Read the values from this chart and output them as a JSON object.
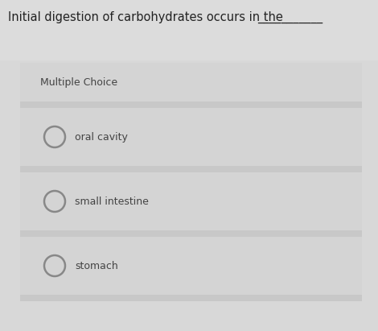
{
  "title_parts": [
    "Initial digestion of carbohydrates occurs in the "
  ],
  "underline_text": "___________",
  "label": "Multiple Choice",
  "options": [
    "oral cavity",
    "small intestine",
    "stomach"
  ],
  "outer_bg": "#d8d8d8",
  "top_area_bg": "#d4d4d4",
  "panel_bg": "#d0d0d0",
  "option_row_bg": "#d0d0d0",
  "option_sep_bg": "#c8c8c8",
  "title_fontsize": 10.5,
  "label_fontsize": 9.0,
  "option_fontsize": 9.0,
  "circle_color": "#888888",
  "text_color": "#444444",
  "title_color": "#222222"
}
